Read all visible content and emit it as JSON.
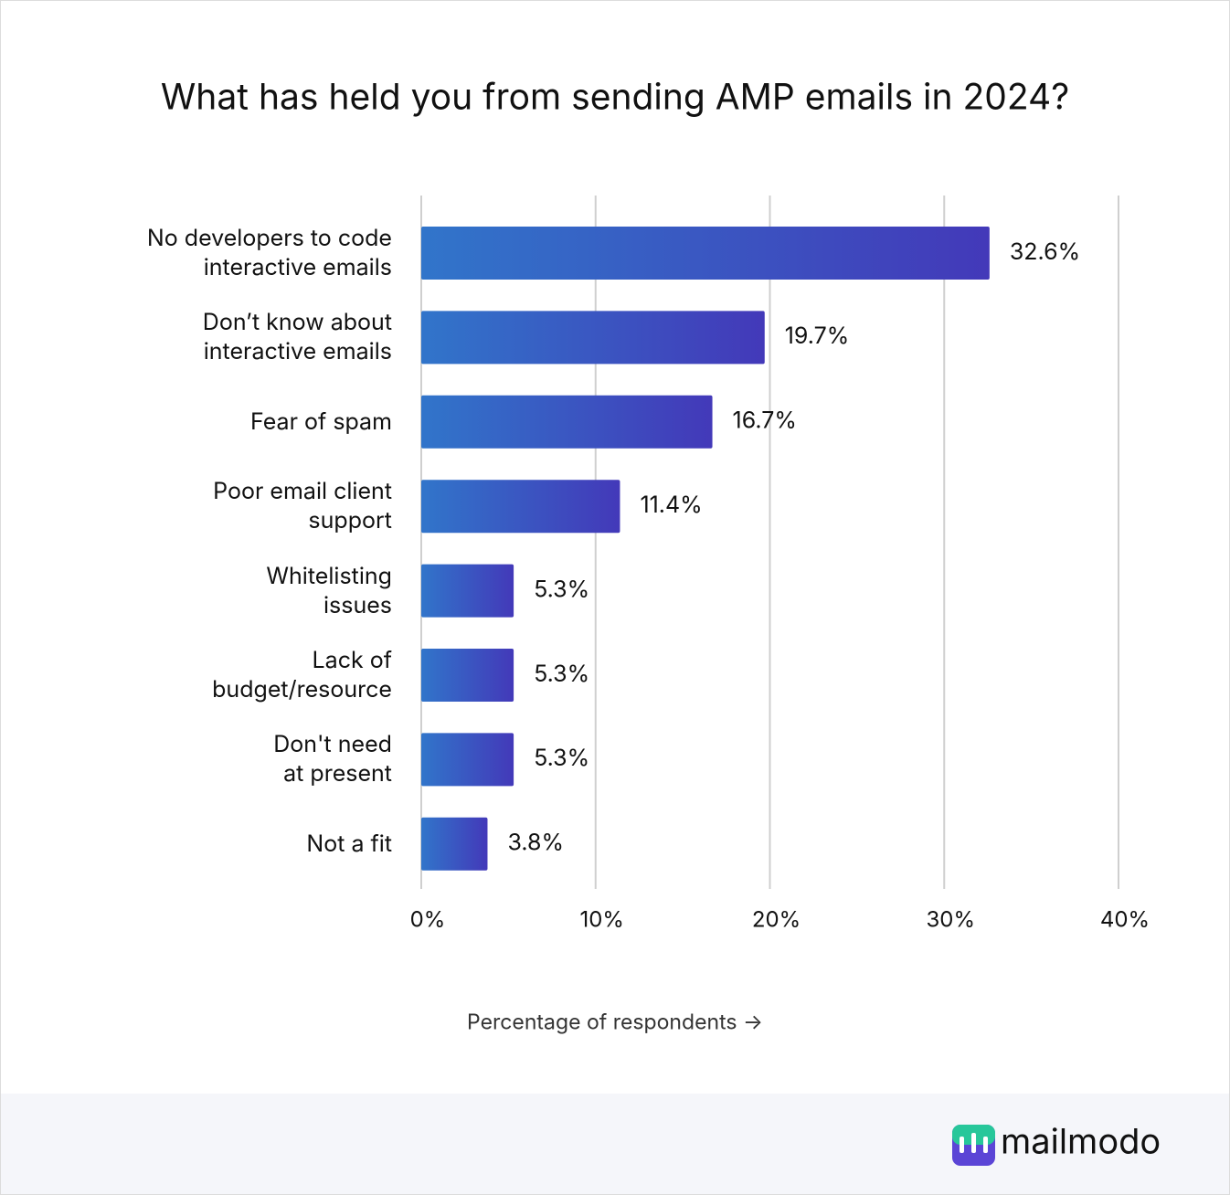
{
  "chart_data": {
    "type": "bar",
    "orientation": "horizontal",
    "title": "What has held you from sending AMP emails in 2024?",
    "categories": [
      "No developers to code\ninteractive emails",
      "Don’t know about\ninteractive emails",
      "Fear of spam",
      "Poor email client\nsupport",
      "Whitelisting\nissues",
      "Lack of \nbudget/resource",
      "Don't need \nat present",
      "Not a fit"
    ],
    "values": [
      32.6,
      19.7,
      16.7,
      11.4,
      5.3,
      5.3,
      5.3,
      3.8
    ],
    "value_labels": [
      "32.6%",
      "19.7%",
      "16.7%",
      "11.4%",
      "5.3%",
      "5.3%",
      "5.3%",
      "3.8%"
    ],
    "gradient": [
      "#3175ca",
      "#4339b9"
    ],
    "xlim": [
      0,
      40
    ],
    "xticks": [
      {
        "value": 0,
        "label": "0%"
      },
      {
        "value": 10,
        "label": "10%"
      },
      {
        "value": 20,
        "label": "20%"
      },
      {
        "value": 30,
        "label": "30%"
      },
      {
        "value": 40,
        "label": "40%"
      }
    ],
    "grid": true,
    "xlabel": "Percentage of respondents →"
  },
  "brand": "mailmodo"
}
